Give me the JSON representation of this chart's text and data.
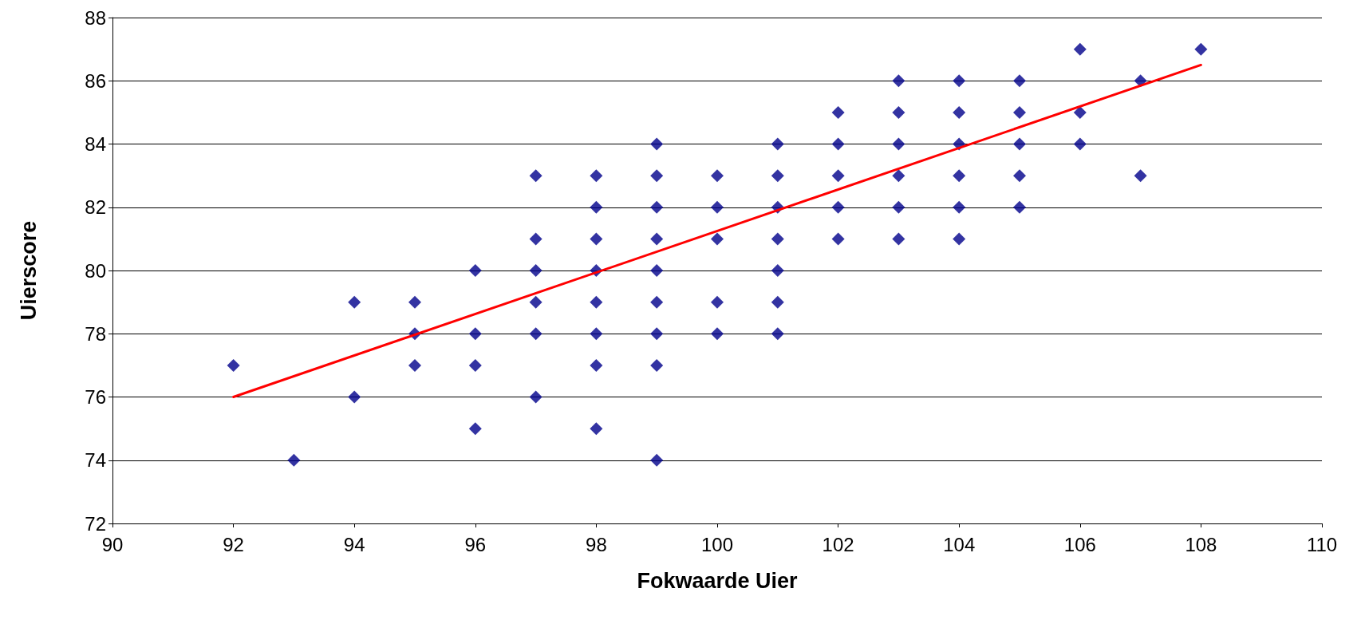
{
  "chart_data": {
    "type": "scatter",
    "xlabel": "Fokwaarde Uier",
    "ylabel": "Uierscore",
    "xlim": [
      90,
      110
    ],
    "xticks": [
      90,
      92,
      94,
      96,
      98,
      100,
      102,
      104,
      106,
      108,
      110
    ],
    "ylim": [
      72,
      88
    ],
    "yticks": [
      72,
      74,
      76,
      78,
      80,
      82,
      84,
      86,
      88
    ],
    "grid": "y",
    "series": [
      {
        "color": "#00008b",
        "marker": "diamond",
        "x": [
          92,
          93,
          94,
          94,
          95,
          95,
          95,
          96,
          96,
          96,
          96,
          97,
          97,
          97,
          97,
          97,
          97,
          98,
          98,
          98,
          98,
          98,
          98,
          98,
          98,
          99,
          99,
          99,
          99,
          99,
          99,
          99,
          99,
          99,
          100,
          100,
          100,
          100,
          100,
          101,
          101,
          101,
          101,
          101,
          101,
          101,
          102,
          102,
          102,
          102,
          102,
          103,
          103,
          103,
          103,
          103,
          103,
          104,
          104,
          104,
          104,
          104,
          104,
          105,
          105,
          105,
          105,
          105,
          106,
          106,
          106,
          107,
          107,
          108
        ],
        "values": [
          77,
          74,
          79,
          76,
          79,
          78,
          77,
          80,
          78,
          77,
          75,
          83,
          81,
          80,
          79,
          78,
          76,
          83,
          82,
          81,
          80,
          79,
          78,
          77,
          75,
          84,
          83,
          82,
          81,
          80,
          79,
          78,
          77,
          74,
          83,
          82,
          81,
          79,
          78,
          84,
          83,
          82,
          81,
          80,
          79,
          78,
          85,
          84,
          83,
          82,
          81,
          86,
          85,
          84,
          83,
          82,
          81,
          86,
          85,
          84,
          83,
          82,
          81,
          86,
          85,
          84,
          83,
          82,
          87,
          85,
          84,
          86,
          83,
          87
        ]
      },
      {
        "type": "line",
        "color": "#ff0000",
        "marker": "none",
        "line_style": "solid",
        "x": [
          92,
          108
        ],
        "values": [
          76,
          86.5
        ]
      }
    ]
  }
}
